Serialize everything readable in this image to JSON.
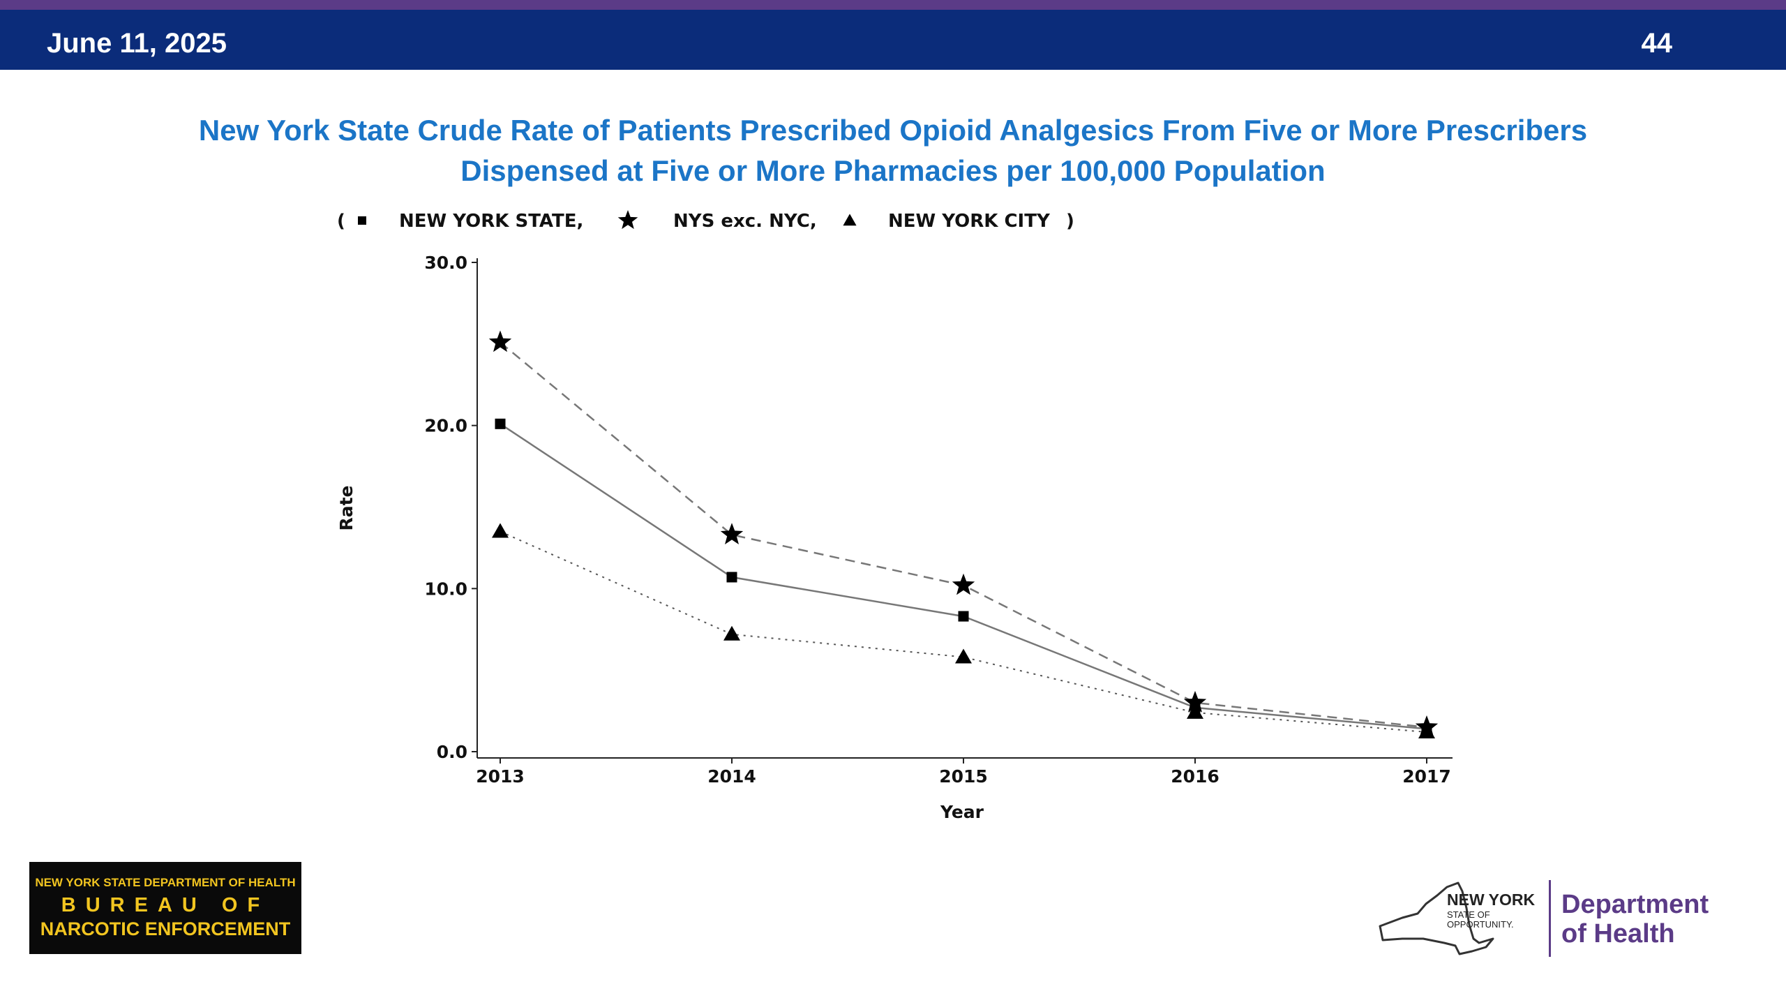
{
  "header": {
    "date": "June 11, 2025",
    "page_number": "44"
  },
  "title": {
    "line1": "New York State Crude Rate of Patients Prescribed Opioid Analgesics From  Five or More Prescribers",
    "line2": "Dispensed at Five or More Pharmacies per 100,000 Population"
  },
  "colors": {
    "top_strip": "#5b3b87",
    "header_bar": "#0b2c7a",
    "title": "#1b75c7",
    "dept_purple": "#5b3b87"
  },
  "chart_data": {
    "type": "line",
    "xlabel": "Year",
    "ylabel": "Rate",
    "ylim": [
      0,
      30
    ],
    "yticks": [
      "0.0",
      "10.0",
      "20.0",
      "30.0"
    ],
    "yticks_values": [
      0,
      10,
      20,
      30
    ],
    "categories": [
      "2013",
      "2014",
      "2015",
      "2016",
      "2017"
    ],
    "legend": {
      "open": "(",
      "close": ")",
      "position": "top"
    },
    "series": [
      {
        "name": "NEW YORK STATE,",
        "marker": "square",
        "line_style": "solid",
        "color": "#777777",
        "values": [
          20.1,
          10.7,
          8.3,
          2.7,
          1.4
        ]
      },
      {
        "name": "NYS exc. NYC,",
        "marker": "star",
        "line_style": "dashed",
        "color": "#777777",
        "values": [
          25.1,
          13.3,
          10.2,
          3.0,
          1.5
        ]
      },
      {
        "name": "NEW YORK CITY",
        "marker": "triangle",
        "line_style": "dotted",
        "color": "#555555",
        "values": [
          13.5,
          7.2,
          5.8,
          2.4,
          1.2
        ]
      }
    ]
  },
  "logos": {
    "bne": {
      "line1": "NEW YORK STATE DEPARTMENT OF HEALTH",
      "line2": "BUREAU OF",
      "line3": "NARCOTIC ENFORCEMENT"
    },
    "nys": {
      "name": "NEW YORK",
      "tagline": "STATE OF OPPORTUNITY.",
      "dept_line1": "Department",
      "dept_line2": "of Health"
    }
  }
}
